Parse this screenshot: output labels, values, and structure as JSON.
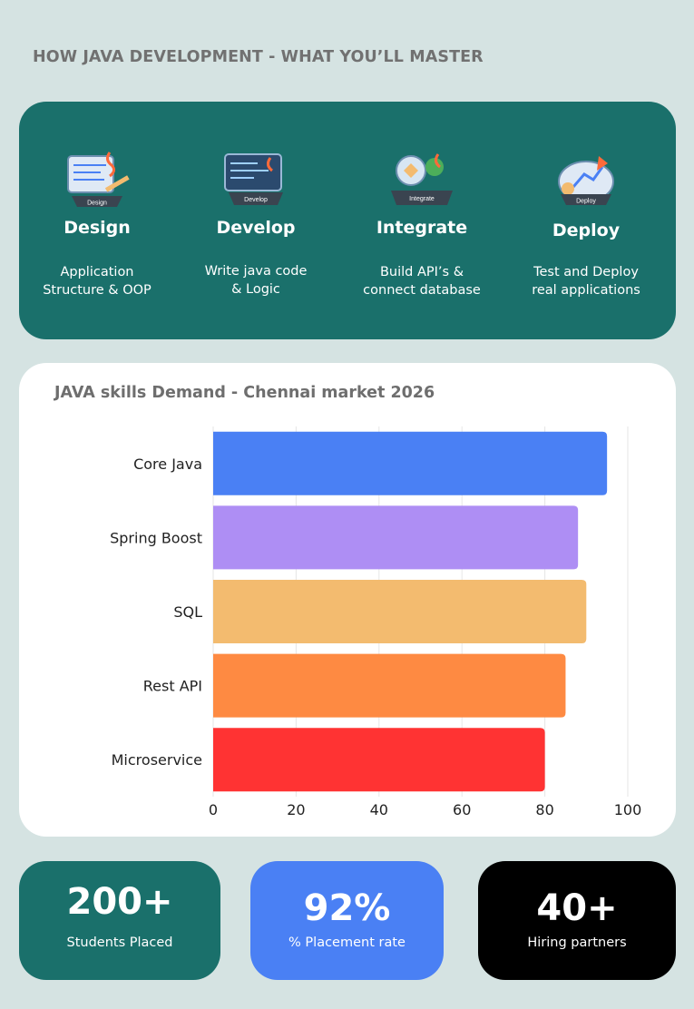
{
  "heading": "HOW JAVA DEVELOPMENT - WHAT YOU’LL MASTER",
  "steps": [
    {
      "icon": "design-icon",
      "icon_text": "Design",
      "title": "Design",
      "desc_line1": "Application",
      "desc_line2": "Structure & OOP"
    },
    {
      "icon": "develop-icon",
      "icon_text": "Develop",
      "title": "Develop",
      "desc_line1": "Write java code",
      "desc_line2": "& Logic"
    },
    {
      "icon": "integrate-icon",
      "icon_text": "Integrate",
      "title": "Integrate",
      "desc_line1": "Build API’s &",
      "desc_line2": "connect database"
    },
    {
      "icon": "deploy-icon",
      "icon_text": "Deploy",
      "title": "Deploy",
      "desc_line1": "Test and Deploy",
      "desc_line2": "real applications"
    }
  ],
  "chart_data": {
    "type": "bar",
    "orientation": "horizontal",
    "title": "JAVA skills Demand - Chennai market 2026",
    "categories": [
      "Core Java",
      "Spring Boost",
      "SQL",
      "Rest API",
      "Microservice"
    ],
    "values": [
      95,
      88,
      90,
      85,
      80
    ],
    "colors": [
      "#4a80f4",
      "#ae8ef4",
      "#f3bb6f",
      "#fe8a42",
      "#ff3333"
    ],
    "xlim": [
      0,
      100
    ],
    "xticks": [
      "0",
      "20",
      "40",
      "60",
      "80",
      "100"
    ],
    "grid": true
  },
  "stats": [
    {
      "value": "200+",
      "label": "Students Placed",
      "color": "#1a706b"
    },
    {
      "value": "92%",
      "label": "% Placement rate",
      "color": "#4a80f4"
    },
    {
      "value": "40+",
      "label": "Hiring partners",
      "color": "#000000"
    }
  ]
}
